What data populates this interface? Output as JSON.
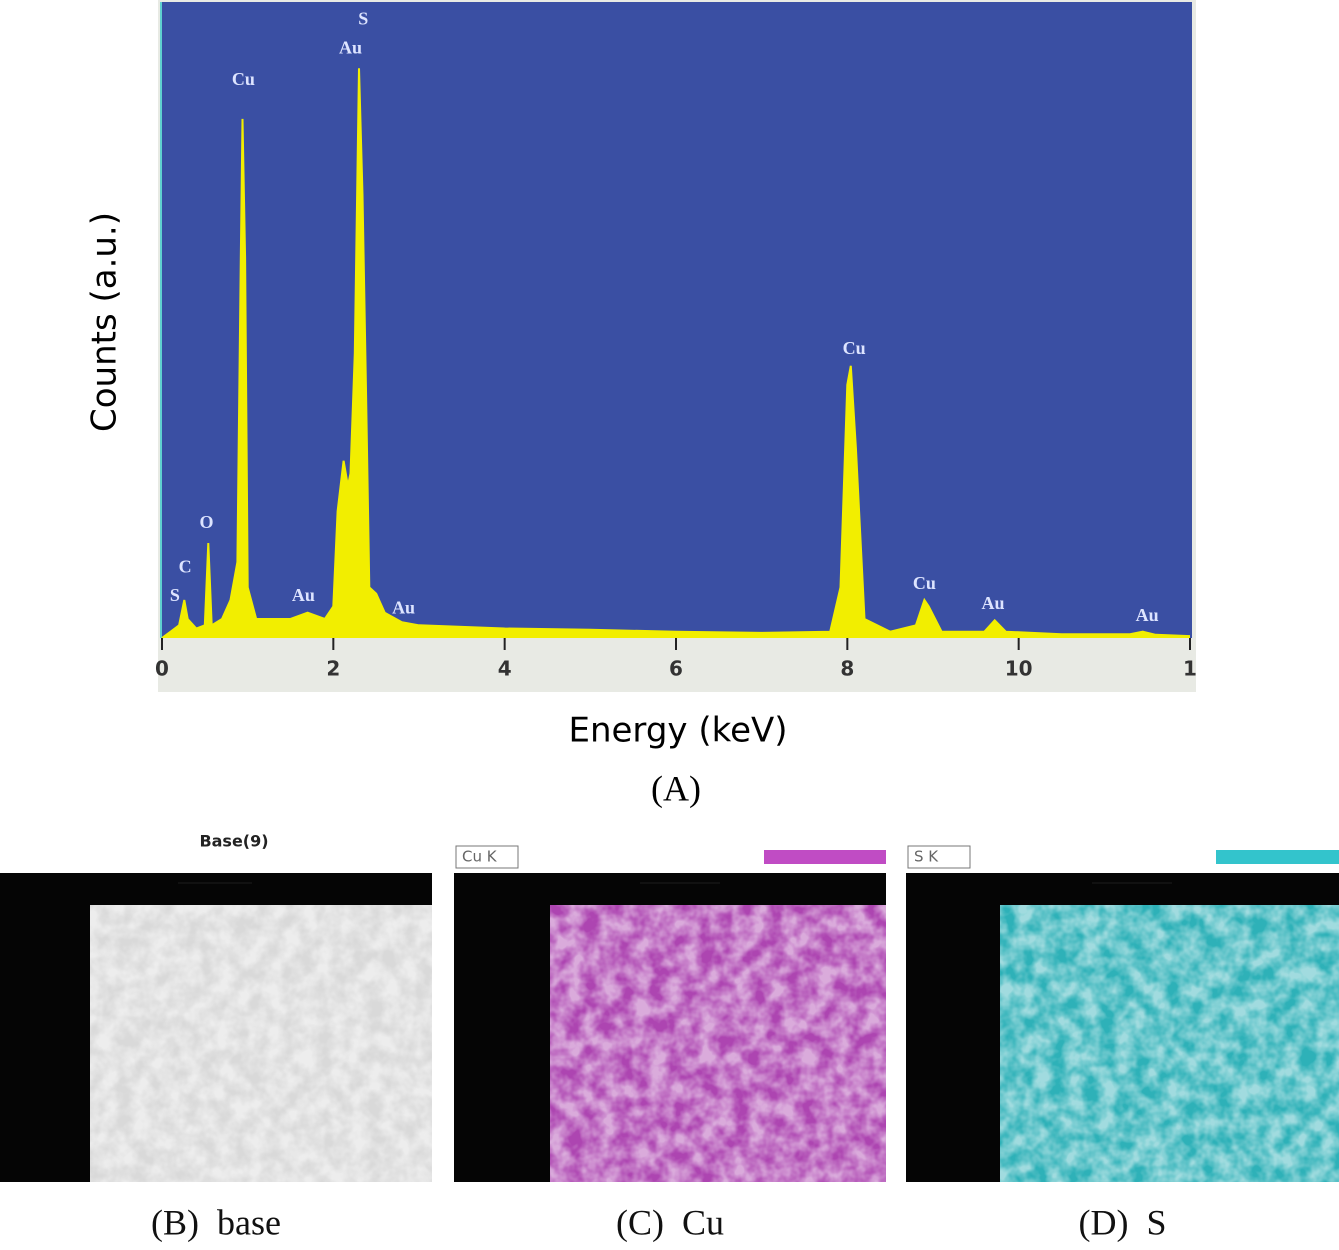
{
  "chart_data": {
    "type": "line",
    "xlabel": "Energy (keV)",
    "ylabel": "Counts (a.u.)",
    "figure_label": "(A)",
    "background": "#3a4fa3",
    "xlim": [
      0,
      12
    ],
    "ylim": [
      0,
      100
    ],
    "xticks": [
      0,
      2,
      4,
      6,
      8,
      10,
      {
        "value": 12,
        "label": "1"
      }
    ],
    "series": [
      {
        "color": "#f2ee00",
        "x": [
          0,
          0.1,
          0.2,
          0.26,
          0.3,
          0.4,
          0.5,
          0.54,
          0.58,
          0.7,
          0.8,
          0.88,
          0.92,
          0.94,
          0.97,
          1.0,
          1.1,
          1.3,
          1.5,
          1.7,
          1.9,
          2.0,
          2.05,
          2.12,
          2.17,
          2.2,
          2.25,
          2.3,
          2.34,
          2.38,
          2.42,
          2.5,
          2.6,
          2.8,
          3,
          4,
          5,
          6,
          7,
          7.8,
          7.92,
          8.0,
          8.04,
          8.1,
          8.2,
          8.5,
          8.8,
          8.9,
          8.95,
          9.1,
          9.6,
          9.72,
          9.85,
          10.5,
          11.3,
          11.45,
          11.6,
          12
        ],
        "values": [
          0,
          1,
          2,
          6,
          3,
          1.5,
          2,
          15,
          2,
          3,
          6,
          12,
          60,
          82,
          60,
          8,
          3,
          3,
          3,
          4,
          3,
          5,
          20,
          28,
          24,
          26,
          45,
          90,
          70,
          40,
          8,
          7,
          4,
          2.5,
          2,
          1.5,
          1.3,
          1,
          0.8,
          1,
          8,
          40,
          43,
          30,
          3,
          1,
          2,
          6,
          5,
          1,
          1,
          2.8,
          1,
          0.6,
          0.6,
          1,
          0.5,
          0.3
        ]
      }
    ],
    "annotations": [
      {
        "text": "S",
        "x": 0.15,
        "y": 6.5
      },
      {
        "text": "C",
        "x": 0.27,
        "y": 11
      },
      {
        "text": "O",
        "x": 0.52,
        "y": 18
      },
      {
        "text": "Cu",
        "x": 0.95,
        "y": 88
      },
      {
        "text": "Au",
        "x": 2.2,
        "y": 93
      },
      {
        "text": "S",
        "x": 2.35,
        "y": 97.6
      },
      {
        "text": "Au",
        "x": 1.65,
        "y": 6.5
      },
      {
        "text": "Au",
        "x": 2.82,
        "y": 4.5
      },
      {
        "text": "Cu",
        "x": 8.08,
        "y": 45.5
      },
      {
        "text": "Cu",
        "x": 8.9,
        "y": 8.4
      },
      {
        "text": "Au",
        "x": 9.7,
        "y": 5.2
      },
      {
        "text": "Au",
        "x": 11.5,
        "y": 3.3
      }
    ]
  },
  "panels": [
    {
      "label": "Base(9)",
      "caption": "(B)  base",
      "color": "#ffffff"
    },
    {
      "label": "Cu K",
      "caption": "(C)  Cu",
      "color": "#c04cc4"
    },
    {
      "label": "S K",
      "caption": "(D)  S",
      "color": "#33c4cc"
    }
  ]
}
